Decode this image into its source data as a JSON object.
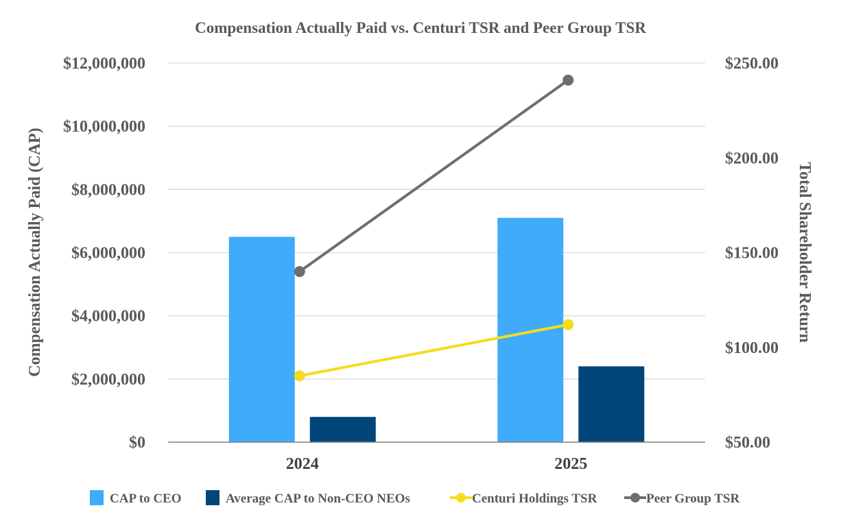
{
  "chart_data": {
    "type": "bar",
    "title": "Compensation Actually Paid vs. Centuri TSR and Peer Group TSR",
    "categories": [
      "2024",
      "2025"
    ],
    "ylabel": "Compensation Actually Paid (CAP)",
    "y2label": "Total Shareholder Return",
    "ylim": [
      0,
      12000000
    ],
    "y2lim": [
      50,
      250
    ],
    "yticks": [
      "$0",
      "$2,000,000",
      "$4,000,000",
      "$6,000,000",
      "$8,000,000",
      "$10,000,000",
      "$12,000,000"
    ],
    "y2ticks": [
      "$50.00",
      "$100.00",
      "$150.00",
      "$200.00",
      "$250.00"
    ],
    "grid": true,
    "legend_position": "bottom",
    "series": [
      {
        "name": "CAP to CEO",
        "kind": "bar",
        "axis": "left",
        "color": "#3fabfa",
        "values": [
          6500000,
          7100000
        ]
      },
      {
        "name": "Average CAP to Non-CEO NEOs",
        "kind": "bar",
        "axis": "left",
        "color": "#00467a",
        "values": [
          800000,
          2400000
        ]
      },
      {
        "name": "Centuri Holdings TSR",
        "kind": "line",
        "axis": "right",
        "color": "#f5dc1e",
        "values": [
          85,
          112
        ]
      },
      {
        "name": "Peer Group TSR",
        "kind": "line",
        "axis": "right",
        "color": "#6e6e6e",
        "values": [
          140,
          241
        ]
      }
    ]
  }
}
